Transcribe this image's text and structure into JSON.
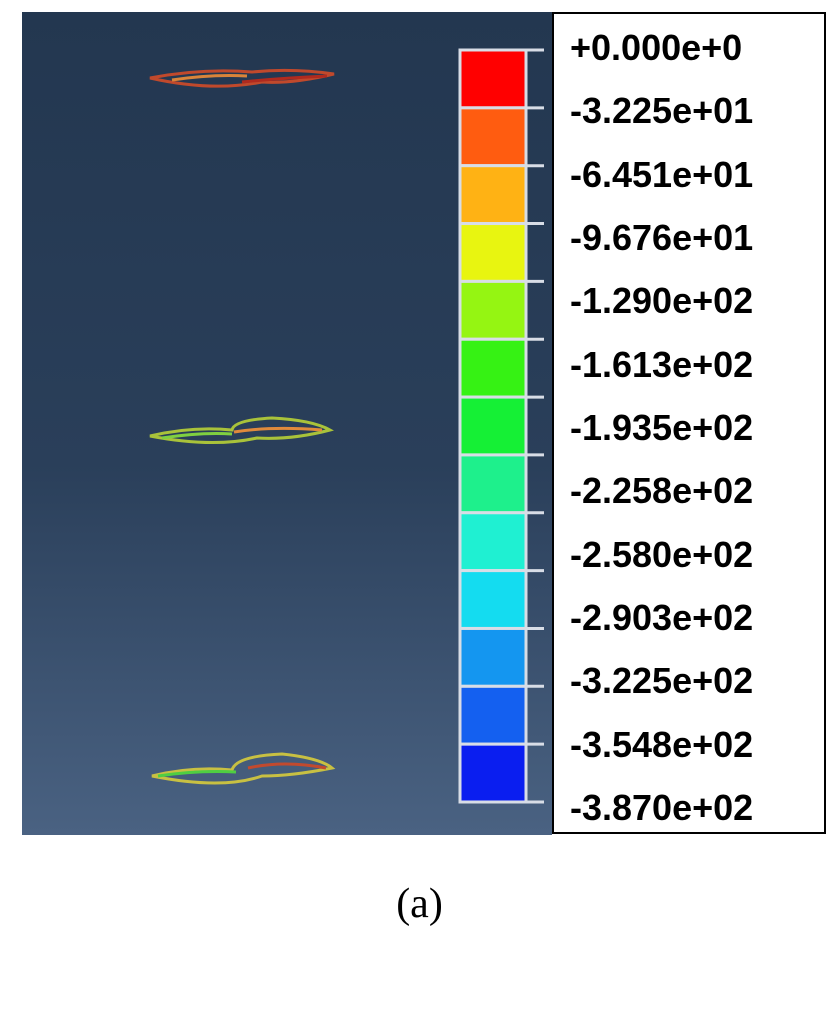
{
  "legend": {
    "labels": [
      "+0.000e+0",
      "-3.225e+01",
      "-6.451e+01",
      "-9.676e+01",
      "-1.290e+02",
      "-1.613e+02",
      "-1.935e+02",
      "-2.258e+02",
      "-2.580e+02",
      "-2.903e+02",
      "-3.225e+02",
      "-3.548e+02",
      "-3.870e+02"
    ],
    "colors": [
      "#ff0000",
      "#ff5c10",
      "#ffb214",
      "#e8f510",
      "#95f512",
      "#36f214",
      "#15f035",
      "#1ef08c",
      "#1ff0d2",
      "#14dcf0",
      "#1496f0",
      "#1460f0",
      "#0a1ef0"
    ]
  },
  "caption": "(a)"
}
